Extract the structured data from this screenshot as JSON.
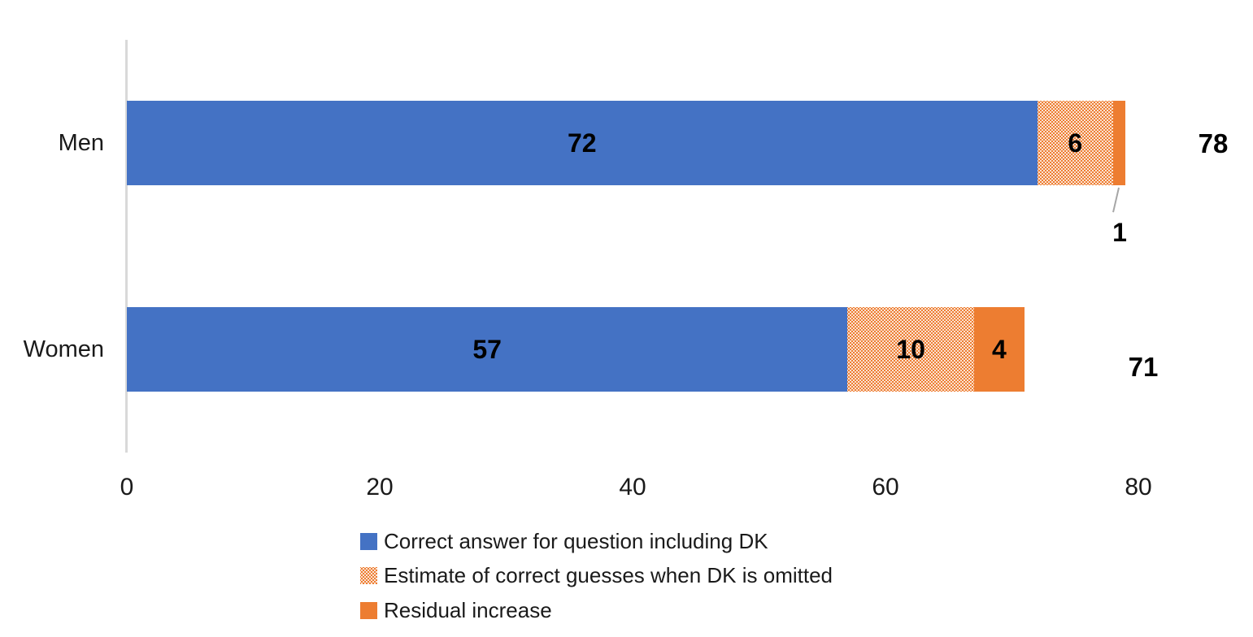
{
  "chart_data": {
    "type": "bar",
    "orientation": "horizontal",
    "title": "",
    "categories": [
      "Men",
      "Women"
    ],
    "series": [
      {
        "name": "Correct answer for question including DK",
        "values": [
          72,
          57
        ],
        "style": "solid-blue"
      },
      {
        "name": "Estimate of correct guesses when DK is omitted",
        "values": [
          6,
          10
        ],
        "style": "dotted-orange"
      },
      {
        "name": "Residual increase",
        "values": [
          1,
          4
        ],
        "style": "solid-orange"
      }
    ],
    "segment_labels": [
      [
        "72",
        "6",
        "1"
      ],
      [
        "57",
        "10",
        "4"
      ]
    ],
    "totals": [
      "78",
      "71"
    ],
    "x_ticks": [
      "0",
      "20",
      "40",
      "60",
      "80"
    ],
    "x_tick_values": [
      0,
      20,
      40,
      60,
      80
    ],
    "xlim": [
      0,
      80
    ],
    "grid": false,
    "legend_position": "bottom-left",
    "colors": {
      "series_blue": "#4472C4",
      "series_orange": "#ED7D31",
      "dot_pattern_fg": "#ED7D31",
      "dot_pattern_bg": "#FFFFFF",
      "axis_line": "#D9D9D9",
      "leader_line": "#A6A6A6",
      "label_text": "#000000"
    }
  },
  "legend": {
    "items": [
      {
        "label": "Correct answer for question including DK",
        "swatch": "solid-blue"
      },
      {
        "label": "Estimate of correct guesses when DK is omitted",
        "swatch": "dotted-orange"
      },
      {
        "label": "Residual increase",
        "swatch": "solid-orange"
      }
    ]
  }
}
